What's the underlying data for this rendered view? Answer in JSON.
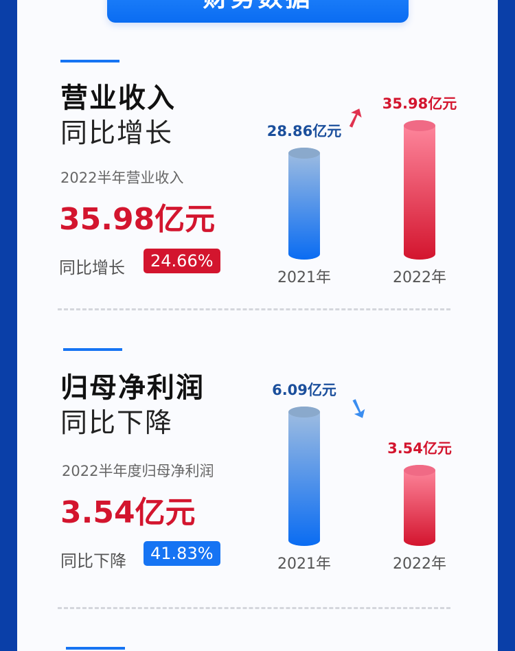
{
  "banner": {
    "title": "财务数据"
  },
  "sections": [
    {
      "title": "营业收入",
      "subtitle": "同比增长",
      "metric_label": "2022半年营业收入",
      "metric_value": "35.98亿元",
      "change_label": "同比增长",
      "change_value": "24.66%",
      "badge_color": "#d3152e",
      "trend": "up"
    },
    {
      "title": "归母净利润",
      "subtitle": "同比下降",
      "metric_label": "2022半年度归母净利润",
      "metric_value": "3.54亿元",
      "change_label": "同比下降",
      "change_value": "41.83%",
      "badge_color": "#1674f3",
      "trend": "down"
    }
  ],
  "chart_data": [
    {
      "type": "bar",
      "categories": [
        "2021年",
        "2022年"
      ],
      "values": [
        28.86,
        35.98
      ],
      "value_labels": [
        "28.86亿元",
        "35.98亿元"
      ],
      "unit": "亿元",
      "colors": [
        "#1674f3",
        "#d3152e"
      ]
    },
    {
      "type": "bar",
      "categories": [
        "2021年",
        "2022年"
      ],
      "values": [
        6.09,
        3.54
      ],
      "value_labels": [
        "6.09亿元",
        "3.54亿元"
      ],
      "unit": "亿元",
      "colors": [
        "#1674f3",
        "#d3152e"
      ]
    }
  ]
}
